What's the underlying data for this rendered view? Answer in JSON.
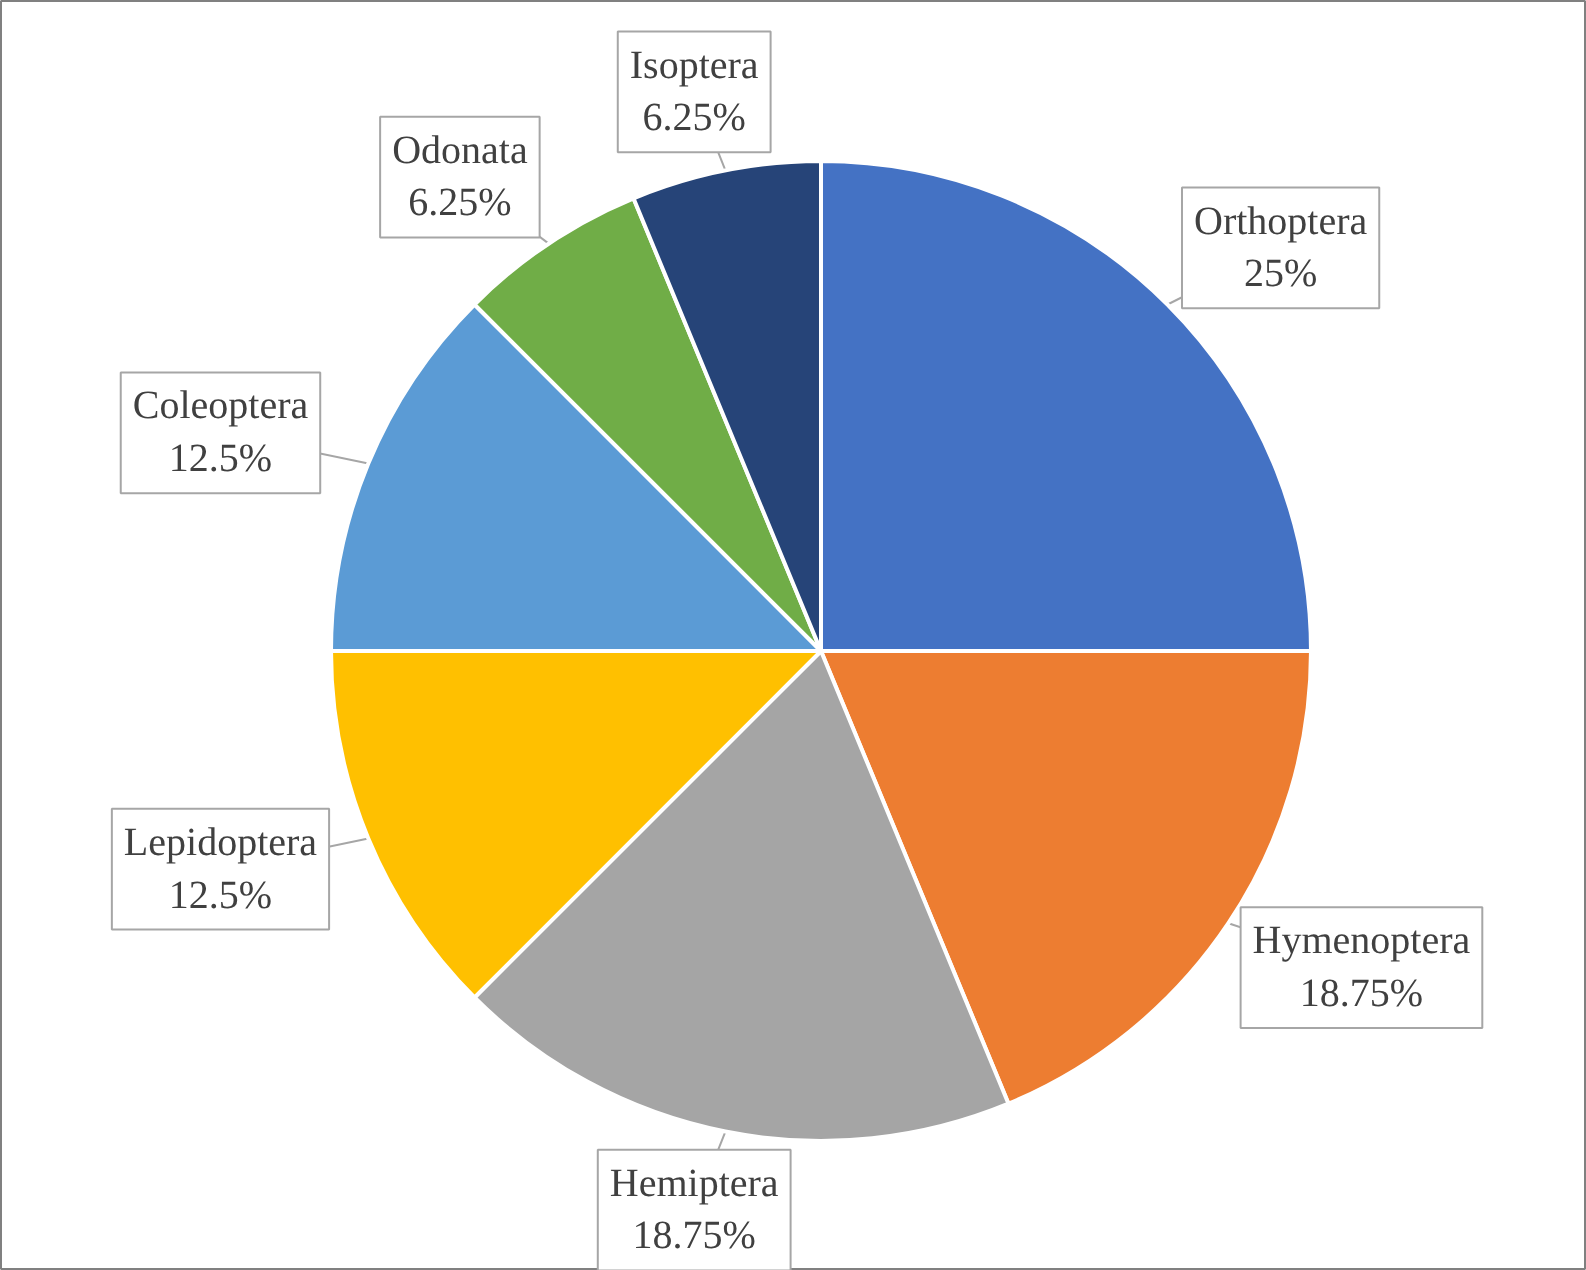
{
  "chart_data": {
    "type": "pie",
    "categories": [
      "Orthoptera",
      "Hymenoptera",
      "Hemiptera",
      "Lepidoptera",
      "Coleoptera",
      "Odonata",
      "Isoptera"
    ],
    "values": [
      25,
      18.75,
      18.75,
      12.5,
      12.5,
      6.25,
      6.25
    ],
    "colors": [
      "#4472c4",
      "#ed7d31",
      "#a5a5a5",
      "#ffc000",
      "#5b9bd5",
      "#70ad47",
      "#264478"
    ],
    "value_labels": [
      "25%",
      "18.75%",
      "18.75%",
      "12.5%",
      "12.5%",
      "6.25%",
      "6.25%"
    ]
  }
}
